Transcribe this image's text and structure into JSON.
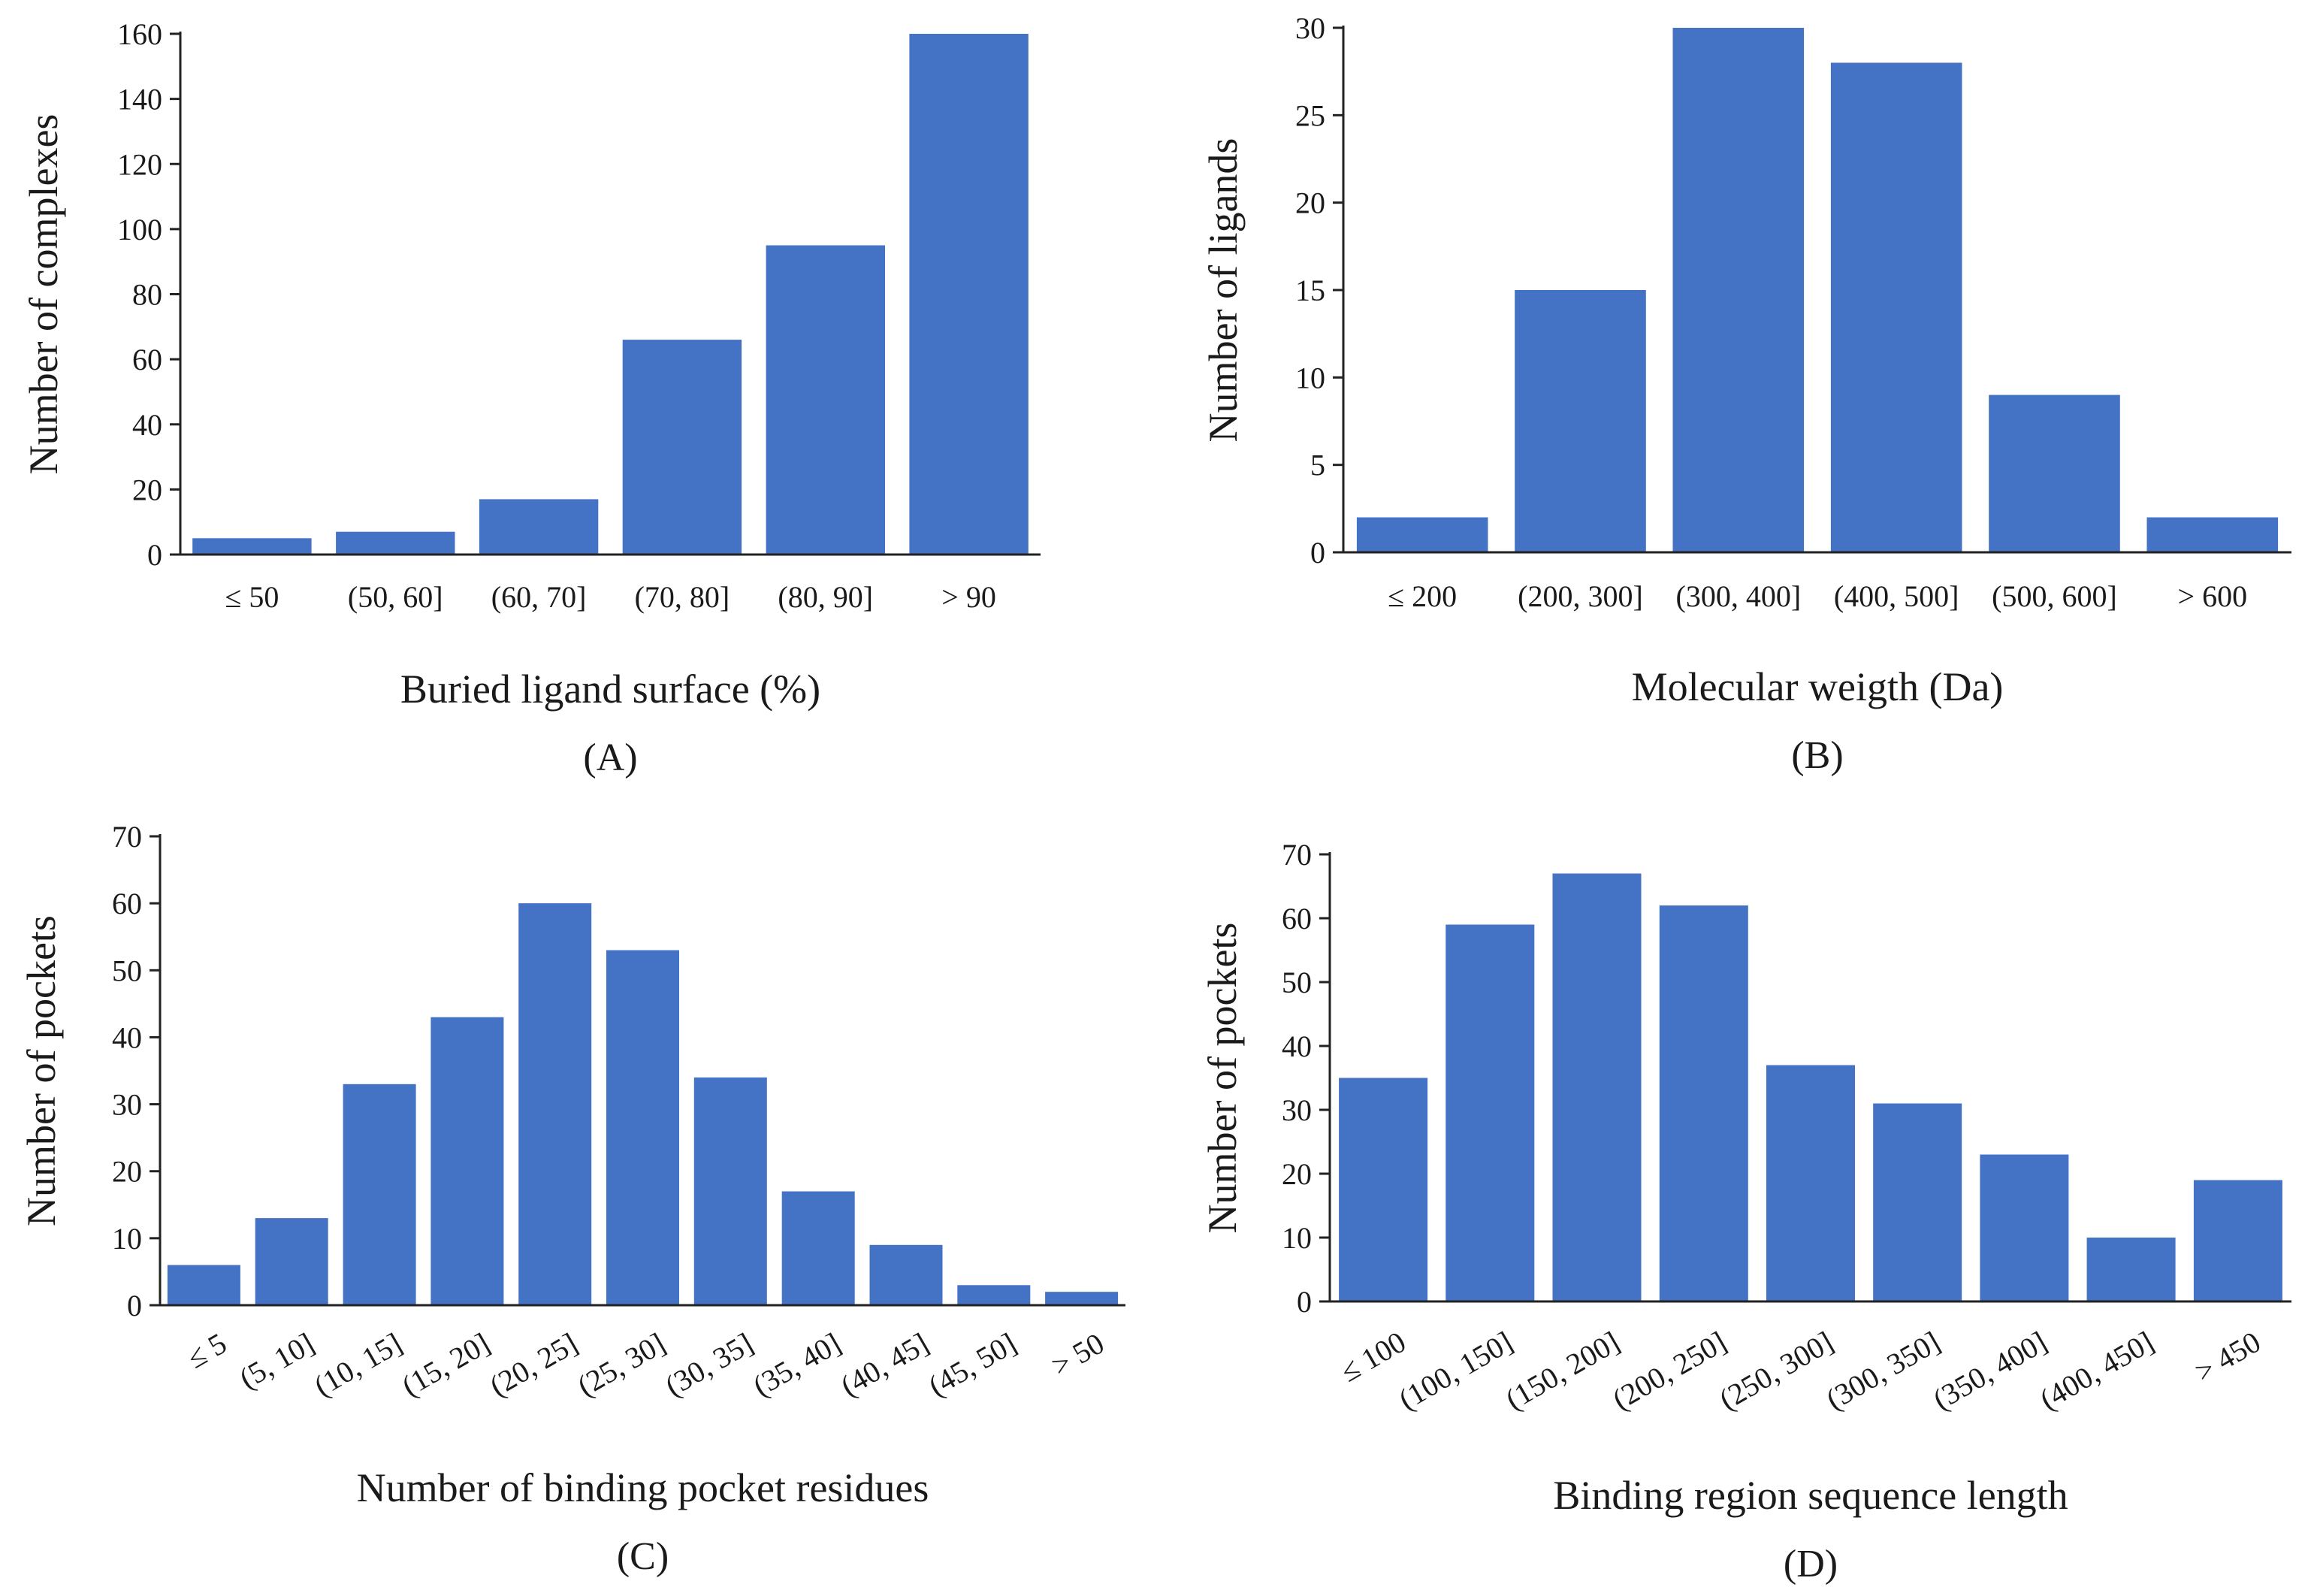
{
  "chart_data": [
    {
      "type": "bar",
      "title": "",
      "panel_label": "(A)",
      "xlabel": "Buried ligand surface (%)",
      "ylabel": "Number of complexes",
      "categories": [
        "≤ 50",
        "(50, 60]",
        "(60, 70]",
        "(70, 80]",
        "(80, 90]",
        "> 90"
      ],
      "values": [
        5,
        7,
        17,
        66,
        95,
        160
      ],
      "ylim": [
        0,
        160
      ],
      "yticks": [
        0,
        20,
        40,
        60,
        80,
        100,
        120,
        140,
        160
      ],
      "color": "#4472c4",
      "grid": false
    },
    {
      "type": "bar",
      "title": "",
      "panel_label": "(B)",
      "xlabel": "Molecular weigth (Da)",
      "ylabel": "Number of ligands",
      "categories": [
        "≤ 200",
        "(200, 300]",
        "(300, 400]",
        "(400, 500]",
        "(500, 600]",
        "> 600"
      ],
      "values": [
        2,
        15,
        30,
        28,
        9,
        2
      ],
      "ylim": [
        0,
        30
      ],
      "yticks": [
        0,
        5,
        10,
        15,
        20,
        25,
        30
      ],
      "color": "#4472c4",
      "grid": false
    },
    {
      "type": "bar",
      "title": "",
      "panel_label": "(C)",
      "xlabel": "Number of binding pocket residues",
      "ylabel": "Number of pockets",
      "categories": [
        "≤ 5",
        "(5, 10]",
        "(10, 15]",
        "(15, 20]",
        "(20, 25]",
        "(25, 30]",
        "(30, 35]",
        "(35, 40]",
        "(40, 45]",
        "(45, 50]",
        "> 50"
      ],
      "values": [
        6,
        13,
        33,
        43,
        60,
        53,
        34,
        17,
        9,
        3,
        2
      ],
      "ylim": [
        0,
        70
      ],
      "yticks": [
        0,
        10,
        20,
        30,
        40,
        50,
        60,
        70
      ],
      "color": "#4472c4",
      "grid": false,
      "rotate_labels": true
    },
    {
      "type": "bar",
      "title": "",
      "panel_label": "(D)",
      "xlabel": "Binding region sequence length",
      "ylabel": "Number of  pockets",
      "categories": [
        "≤ 100",
        "(100, 150]",
        "(150, 200]",
        "(200, 250]",
        "(250, 300]",
        "(300, 350]",
        "(350, 400]",
        "(400, 450]",
        "> 450"
      ],
      "values": [
        35,
        59,
        67,
        62,
        37,
        31,
        23,
        10,
        19
      ],
      "ylim": [
        0,
        70
      ],
      "yticks": [
        0,
        10,
        20,
        30,
        40,
        50,
        60,
        70
      ],
      "color": "#4472c4",
      "grid": false,
      "rotate_labels": true
    }
  ]
}
